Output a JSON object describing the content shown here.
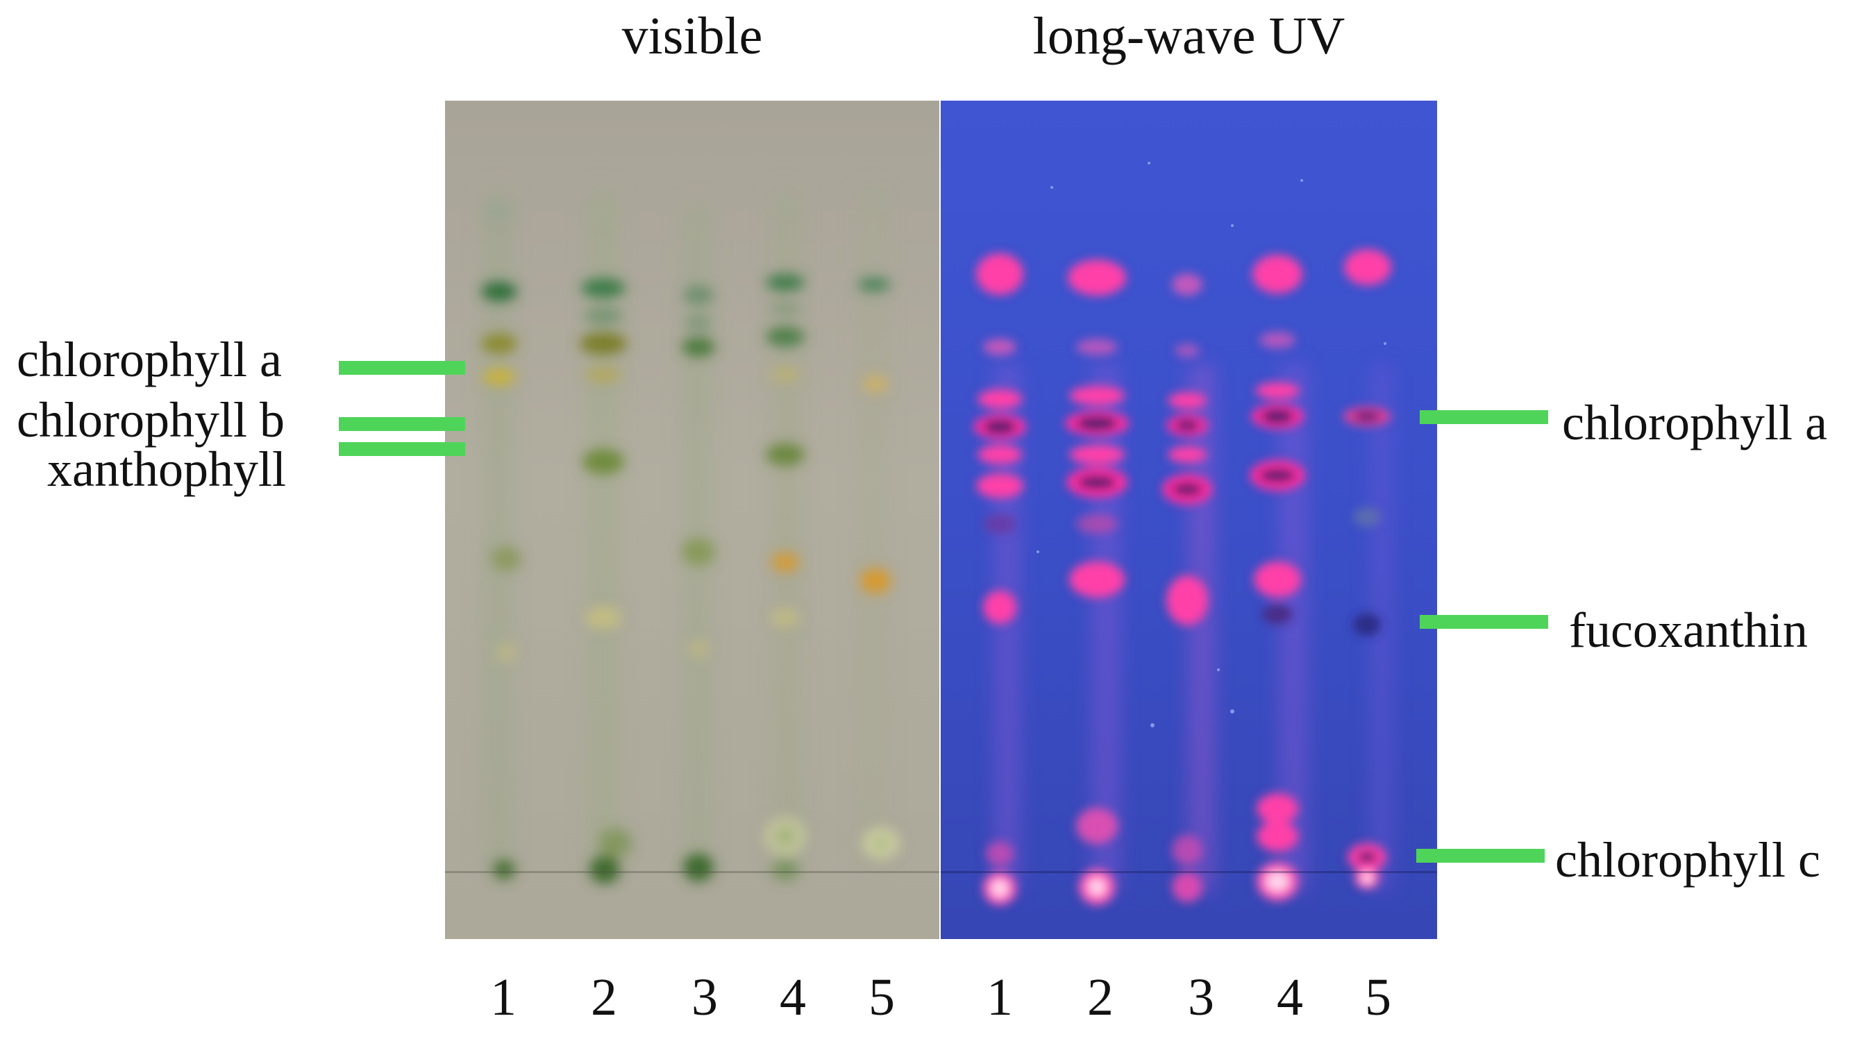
{
  "panels": {
    "visible": {
      "title": "visible"
    },
    "uv": {
      "title": "long-wave UV"
    }
  },
  "labels_left": [
    "chlorophyll a",
    "chlorophyll b",
    "xanthophyll"
  ],
  "labels_right": [
    "chlorophyll a",
    "fucoxanthin",
    "chlorophyll c"
  ],
  "lanes_visible": [
    "1",
    "2",
    "3",
    "4",
    "5"
  ],
  "lanes_uv": [
    "1",
    "2",
    "3",
    "4",
    "5"
  ],
  "colors": {
    "marker": "#4fd45a",
    "visible_plate": "#aca89a",
    "uv_plate": "#3b4fc8",
    "chlorophyll_green": "#2f6e3a",
    "xanthophyll_yellow": "#c9b23a",
    "carotenoid_orange": "#d79a2e",
    "uv_fluorescence": "#ff2fa0"
  }
}
